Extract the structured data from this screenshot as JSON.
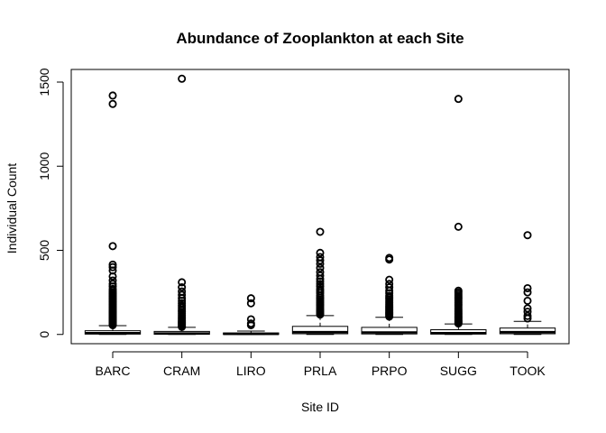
{
  "chart_data": {
    "type": "boxplot",
    "title": "Abundance of Zooplankton at each Site",
    "xlabel": "Site ID",
    "ylabel": "Individual Count",
    "ylim": [
      -55,
      1575
    ],
    "yticks": [
      0,
      500,
      1000,
      1500
    ],
    "grid": false,
    "legend": "none",
    "categories": [
      "BARC",
      "CRAM",
      "LIRO",
      "PRLA",
      "PRPO",
      "SUGG",
      "TOOK"
    ],
    "boxes": [
      {
        "min": 0,
        "q1": 2,
        "median": 8,
        "q3": 22,
        "max": 52,
        "outliers": [
          55,
          58,
          62,
          66,
          70,
          75,
          80,
          85,
          90,
          95,
          100,
          106,
          112,
          118,
          124,
          130,
          136,
          142,
          148,
          155,
          162,
          170,
          178,
          186,
          194,
          202,
          210,
          218,
          226,
          234,
          242,
          250,
          260,
          270,
          285,
          300,
          320,
          345,
          380,
          400,
          415,
          525,
          1370,
          1420
        ]
      },
      {
        "min": 0,
        "q1": 1,
        "median": 6,
        "q3": 18,
        "max": 42,
        "outliers": [
          45,
          50,
          56,
          62,
          68,
          75,
          82,
          90,
          98,
          106,
          115,
          125,
          135,
          145,
          158,
          170,
          185,
          200,
          215,
          235,
          255,
          280,
          310,
          1520
        ]
      },
      {
        "min": 0,
        "q1": 0,
        "median": 3,
        "q3": 9,
        "max": 20,
        "outliers": [
          55,
          65,
          90,
          185,
          215
        ]
      },
      {
        "min": 0,
        "q1": 4,
        "median": 14,
        "q3": 48,
        "max": 112,
        "outliers": [
          118,
          126,
          134,
          142,
          150,
          160,
          170,
          180,
          190,
          200,
          210,
          220,
          232,
          245,
          258,
          270,
          285,
          300,
          315,
          330,
          350,
          370,
          395,
          420,
          440,
          460,
          485,
          610
        ]
      },
      {
        "min": 0,
        "q1": 3,
        "median": 12,
        "q3": 42,
        "max": 102,
        "outliers": [
          106,
          112,
          118,
          124,
          130,
          138,
          146,
          154,
          162,
          170,
          180,
          190,
          200,
          210,
          220,
          230,
          245,
          260,
          280,
          300,
          325,
          445,
          455
        ]
      },
      {
        "min": 0,
        "q1": 2,
        "median": 8,
        "q3": 28,
        "max": 62,
        "outliers": [
          65,
          70,
          76,
          82,
          88,
          95,
          102,
          110,
          118,
          126,
          134,
          142,
          150,
          160,
          170,
          180,
          190,
          200,
          210,
          220,
          230,
          240,
          250,
          260,
          640,
          1400
        ]
      },
      {
        "min": 0,
        "q1": 4,
        "median": 14,
        "q3": 38,
        "max": 78,
        "outliers": [
          95,
          110,
          135,
          155,
          200,
          250,
          275,
          590
        ]
      }
    ]
  }
}
